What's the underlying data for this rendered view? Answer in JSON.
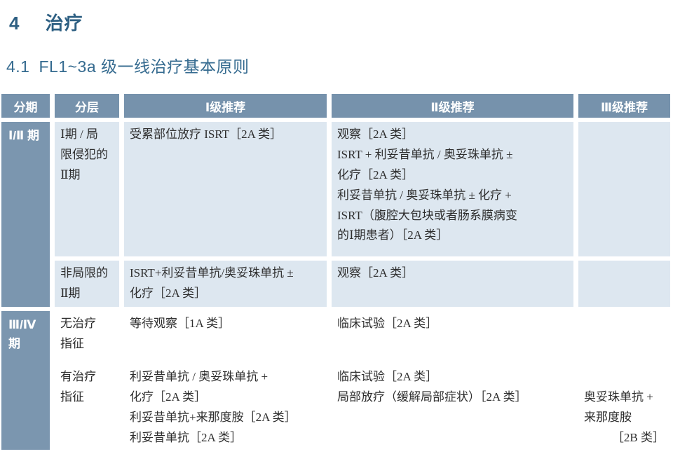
{
  "page": {
    "section_number": "4",
    "section_title": "治疗",
    "subsection_number": "4.1",
    "subsection_title": "FL1~3a 级一线治疗基本原则"
  },
  "colors": {
    "heading_blue": "#2d5f82",
    "header_bg": "#7692ac",
    "stage_bg": "#7b96af",
    "row_group1_bg": "#dde7f0",
    "row_group2_bg": "#ffffff"
  },
  "table": {
    "headers": [
      "分期",
      "分层",
      "Ⅰ级推荐",
      "Ⅱ级推荐",
      "Ⅲ级推荐"
    ],
    "groups": [
      {
        "stage": "Ⅰ/Ⅱ 期",
        "rows": [
          {
            "stratum": "Ⅰ期 / 局\n限侵犯的\nⅡ期",
            "rec1": "受累部位放疗 ISRT［2A 类］",
            "rec2": "观察［2A 类］\nISRT + 利妥昔单抗 / 奥妥珠单抗 ±\n化疗［2A 类］\n利妥昔单抗 / 奥妥珠单抗 ± 化疗 +\nISRT（腹腔大包块或者肠系膜病变\n的Ⅰ期患者）［2A 类］",
            "rec3": ""
          },
          {
            "stratum": "非局限的\nⅡ期",
            "rec1": "ISRT+利妥昔单抗/奥妥珠单抗 ±\n化疗［2A 类］",
            "rec2": "观察［2A 类］",
            "rec3": ""
          }
        ]
      },
      {
        "stage": "Ⅲ/Ⅳ 期",
        "rows": [
          {
            "stratum": "无治疗\n指征",
            "rec1": "等待观察［1A 类］",
            "rec2": "临床试验［2A 类］",
            "rec3": ""
          },
          {
            "stratum": "有治疗\n指征",
            "rec1": "利妥昔单抗 / 奥妥珠单抗 +\n化疗［2A 类］\n利妥昔单抗+来那度胺［2A 类］\n利妥昔单抗［2A 类］",
            "rec2": "临床试验［2A 类］\n局部放疗（缓解局部症状）［2A 类］",
            "rec3_main": "奥妥珠单抗 +\n来那度胺",
            "rec3_grade": "［2B 类］"
          }
        ]
      }
    ]
  }
}
